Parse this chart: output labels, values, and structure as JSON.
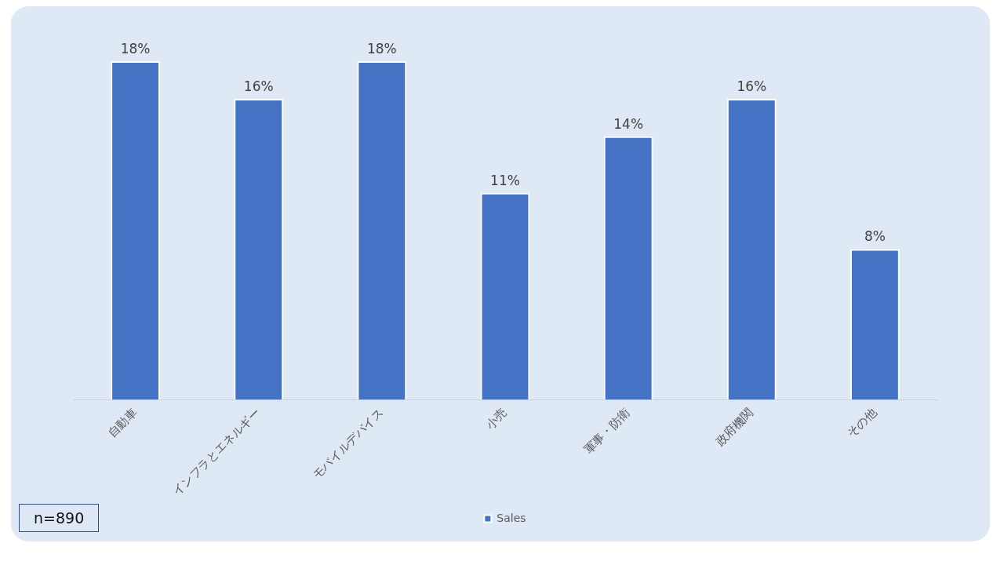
{
  "chart_data": {
    "type": "bar",
    "categories": [
      "自動車",
      "インフラとエネルギー",
      "モバイルデバイス",
      "小売",
      "軍事・防衛",
      "政府機関",
      "その他"
    ],
    "series": [
      {
        "name": "Sales",
        "color": "#4472c4",
        "values": [
          18,
          16,
          18,
          11,
          14,
          16,
          8
        ],
        "value_labels": [
          "18%",
          "16%",
          "18%",
          "11%",
          "14%",
          "16%",
          "8%"
        ]
      }
    ],
    "grid": false,
    "legend": "bottom",
    "annotations": [
      "n=890"
    ]
  }
}
